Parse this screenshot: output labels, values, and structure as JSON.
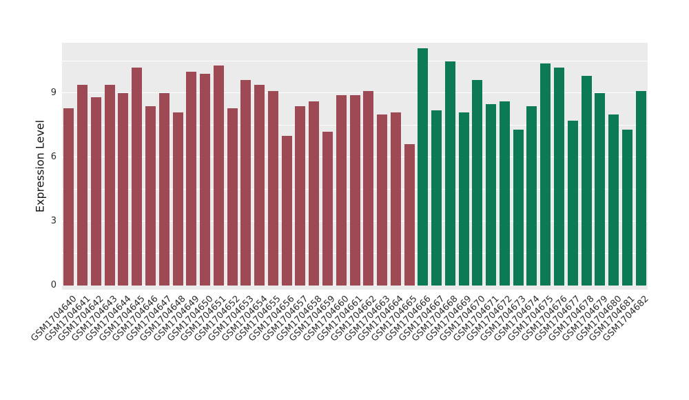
{
  "chart_data": {
    "type": "bar",
    "title": "",
    "xlabel": "",
    "ylabel": "Expression Level",
    "ylim": [
      0,
      11.35
    ],
    "yticks": [
      0,
      3,
      6,
      9
    ],
    "yticks_minor": [
      1.5,
      4.5,
      7.5,
      10.5
    ],
    "grid": "on",
    "legend_position": "none",
    "panel_background": "#EBEBEB",
    "gridline_color": "#FFFFFF",
    "group_split_index": 26,
    "group_colors": [
      "#9E4A55",
      "#0B7A55"
    ],
    "categories": [
      "GSM1704640",
      "GSM1704641",
      "GSM1704642",
      "GSM1704643",
      "GSM1704644",
      "GSM1704645",
      "GSM1704646",
      "GSM1704647",
      "GSM1704648",
      "GSM1704649",
      "GSM1704650",
      "GSM1704651",
      "GSM1704652",
      "GSM1704653",
      "GSM1704654",
      "GSM1704655",
      "GSM1704656",
      "GSM1704657",
      "GSM1704658",
      "GSM1704659",
      "GSM1704660",
      "GSM1704661",
      "GSM1704662",
      "GSM1704663",
      "GSM1704664",
      "GSM1704665",
      "GSM1704666",
      "GSM1704667",
      "GSM1704668",
      "GSM1704669",
      "GSM1704670",
      "GSM1704671",
      "GSM1704672",
      "GSM1704673",
      "GSM1704674",
      "GSM1704675",
      "GSM1704676",
      "GSM1704677",
      "GSM1704678",
      "GSM1704679",
      "GSM1704680",
      "GSM1704681",
      "GSM1704682"
    ],
    "values": [
      8.3,
      9.4,
      8.8,
      9.4,
      9.0,
      10.2,
      8.4,
      9.0,
      8.1,
      10.0,
      9.9,
      10.3,
      8.3,
      9.6,
      9.4,
      9.1,
      7.0,
      8.4,
      8.6,
      7.2,
      8.9,
      8.9,
      9.1,
      8.0,
      8.1,
      6.6,
      11.1,
      8.2,
      10.5,
      8.1,
      9.6,
      8.5,
      8.6,
      7.3,
      8.4,
      10.4,
      10.2,
      7.7,
      9.8,
      9.0,
      8.0,
      7.3,
      9.1
    ]
  }
}
